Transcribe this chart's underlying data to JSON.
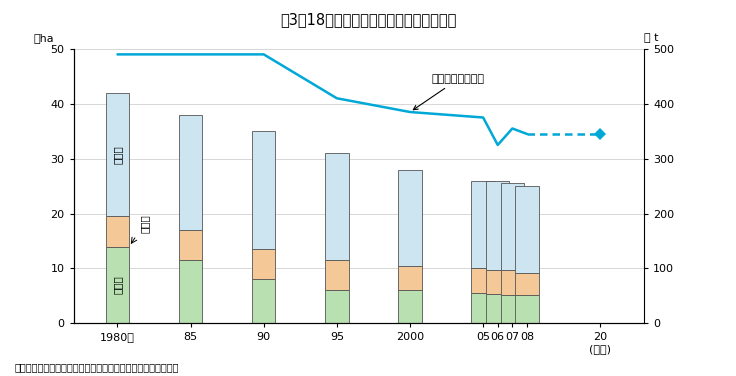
{
  "title": "図3－18　果実の栖培面積、生産量の推移",
  "title_bg": "#f2aaaa",
  "years": [
    1980,
    1985,
    1990,
    1995,
    2000,
    2005,
    2006,
    2007,
    2008
  ],
  "year_labels": [
    "1980年",
    "85",
    "90",
    "95",
    "2000",
    "05",
    "06",
    "07",
    "08",
    "20\n(目標)"
  ],
  "year_positions": [
    1980,
    1985,
    1990,
    1995,
    2000,
    2005,
    2006,
    2007,
    2008,
    2013
  ],
  "mikan": [
    14.0,
    11.5,
    8.0,
    6.0,
    6.0,
    5.5,
    5.3,
    5.2,
    5.2
  ],
  "ringo": [
    5.5,
    5.5,
    5.5,
    5.5,
    4.5,
    4.5,
    4.5,
    4.5,
    4.0
  ],
  "sonota": [
    22.5,
    21.0,
    21.5,
    19.5,
    17.5,
    16.0,
    16.2,
    15.8,
    15.8
  ],
  "production": [
    490,
    490,
    490,
    410,
    385,
    375,
    325,
    355,
    345
  ],
  "production_target": 345,
  "bar_color_mikan": "#b8e0b0",
  "bar_color_ringo": "#f5c898",
  "bar_color_sonota": "#cce5f0",
  "bar_edgecolor": "#555555",
  "line_color": "#00a8d8",
  "ylim_left": [
    0,
    50
  ],
  "ylim_right": [
    0,
    500
  ],
  "yticks_left": [
    0,
    10,
    20,
    30,
    40,
    50
  ],
  "yticks_right": [
    0,
    100,
    200,
    300,
    400,
    500
  ],
  "source": "資料：農林水産省「耕地及び作付面積統計」、「食料需給表」"
}
